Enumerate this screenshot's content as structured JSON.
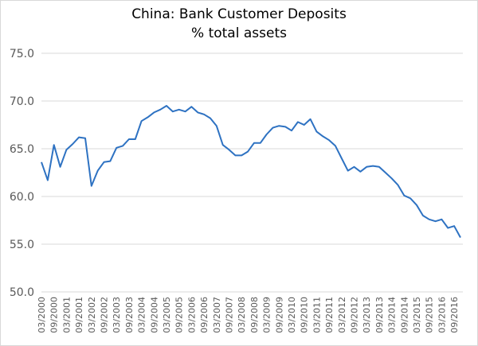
{
  "chart_data": {
    "type": "line",
    "title": "China: Bank Customer Deposits",
    "subtitle": "% total assets",
    "xlabel": "",
    "ylabel": "",
    "ylim": [
      50,
      75
    ],
    "yticks": [
      "50.0",
      "55.0",
      "60.0",
      "65.0",
      "70.0",
      "75.0"
    ],
    "grid": true,
    "legend": "none",
    "line_color": "#2E72C2",
    "x_tick_labels": [
      "03/2000",
      "09/2000",
      "03/2001",
      "09/2001",
      "03/2002",
      "09/2002",
      "03/2003",
      "09/2003",
      "03/2004",
      "09/2004",
      "03/2005",
      "09/2005",
      "03/2006",
      "09/2006",
      "03/2007",
      "09/2007",
      "03/2008",
      "09/2008",
      "03/2009",
      "09/2009",
      "03/2010",
      "09/2010",
      "03/2011",
      "09/2011",
      "03/2012",
      "09/2012",
      "03/2013",
      "09/2013",
      "03/2014",
      "09/2014",
      "03/2015",
      "09/2015",
      "03/2016",
      "09/2016"
    ],
    "series": [
      {
        "values": [
          63.6,
          61.7,
          65.4,
          63.1,
          64.9,
          65.5,
          66.2,
          66.1,
          61.1,
          62.7,
          63.6,
          63.7,
          65.1,
          65.3,
          66.0,
          66.0,
          67.9,
          68.3,
          68.8,
          69.1,
          69.5,
          68.9,
          69.1,
          68.9,
          69.4,
          68.8,
          68.6,
          68.2,
          67.4,
          65.4,
          64.9,
          64.3,
          64.3,
          64.7,
          65.6,
          65.6,
          66.5,
          67.2,
          67.4,
          67.3,
          66.9,
          67.8,
          67.5,
          68.1,
          66.8,
          66.3,
          65.9,
          65.3,
          64.0,
          62.7,
          63.1,
          62.6,
          63.1,
          63.2,
          63.1,
          62.5,
          61.9,
          61.2,
          60.1,
          59.8,
          59.1,
          58.0,
          57.6,
          57.4,
          57.6,
          56.7,
          56.9,
          55.7
        ]
      }
    ]
  }
}
